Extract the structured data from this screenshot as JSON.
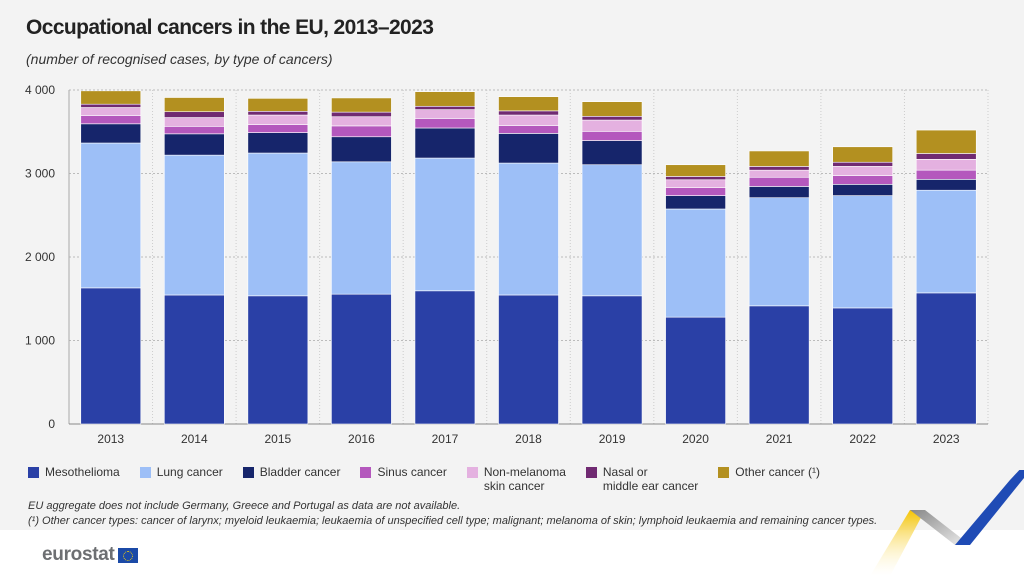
{
  "chart_data": {
    "type": "bar",
    "stacked": true,
    "title": "Occupational cancers in the EU, 2013–2023",
    "subtitle": "(number of recognised cases, by type of cancers)",
    "xlabel": "",
    "ylabel": "",
    "ylim": [
      0,
      4000
    ],
    "yticks": [
      0,
      1000,
      2000,
      3000,
      4000
    ],
    "ytick_labels": [
      "0",
      "1 000",
      "2 000",
      "3 000",
      "4 000"
    ],
    "grid": true,
    "legend_position": "bottom",
    "categories": [
      "2013",
      "2014",
      "2015",
      "2016",
      "2017",
      "2018",
      "2019",
      "2020",
      "2021",
      "2022",
      "2023"
    ],
    "series": [
      {
        "name": "Mesothelioma",
        "color": "#2a40a6",
        "values": [
          1630,
          1545,
          1535,
          1555,
          1595,
          1545,
          1535,
          1280,
          1415,
          1390,
          1570
        ]
      },
      {
        "name": "Lung cancer",
        "color": "#9dbff7",
        "values": [
          1735,
          1675,
          1710,
          1585,
          1590,
          1580,
          1570,
          1295,
          1295,
          1345,
          1230
        ]
      },
      {
        "name": "Bladder cancer",
        "color": "#16256b",
        "values": [
          230,
          255,
          245,
          300,
          360,
          355,
          290,
          160,
          135,
          135,
          130
        ]
      },
      {
        "name": "Sinus cancer",
        "color": "#b458bd",
        "values": [
          100,
          90,
          95,
          130,
          115,
          95,
          110,
          95,
          110,
          105,
          110
        ]
      },
      {
        "name": "Non-melanoma\nskin cancer",
        "color": "#e4b1e0",
        "values": [
          95,
          105,
          115,
          110,
          105,
          125,
          135,
          95,
          85,
          110,
          130
        ]
      },
      {
        "name": "Nasal or\nmiddle ear cancer",
        "color": "#702a72",
        "values": [
          40,
          70,
          45,
          55,
          40,
          50,
          45,
          40,
          45,
          50,
          70
        ]
      },
      {
        "name": "Other cancer (¹)",
        "color": "#b39020",
        "values": [
          160,
          170,
          155,
          170,
          175,
          170,
          175,
          140,
          185,
          185,
          280
        ]
      }
    ]
  },
  "footnotes": [
    "EU aggregate does not include Germany, Greece and Portugal as data are not available.",
    "(¹) Other cancer types: cancer of larynx; myeloid leukaemia; leukaemia of unspecified cell type; malignant; melanoma of skin; lymphoid leukaemia and remaining cancer types."
  ],
  "logo": "eurostat"
}
